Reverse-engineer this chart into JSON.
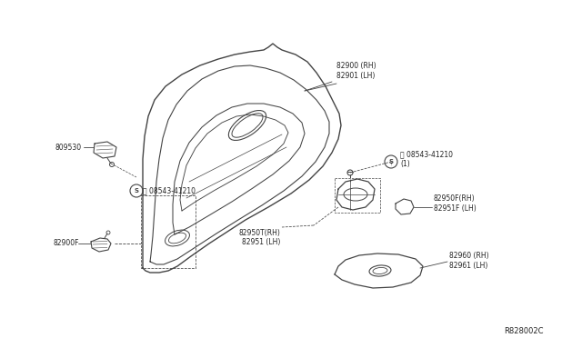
{
  "bg_color": "#ffffff",
  "diagram_color": "#444444",
  "label_color": "#222222",
  "fig_id": "R828002C",
  "labels": {
    "82900_rh": "82900 (RH)",
    "82901_lh": "82901 (LH)",
    "809530": "809530",
    "08543_left": "08543-41210",
    "82900F": "82900F",
    "08543_right": "08543-41210\n(1)",
    "82950T": "82950T(RH)\n82951 (LH)",
    "82950F": "82950F(RH)\n82951F (LH)",
    "82960": "82960 (RH)\n82961 (LH)"
  }
}
